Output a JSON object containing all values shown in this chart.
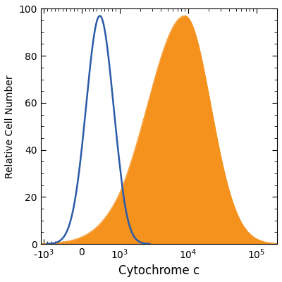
{
  "xlabel": "Cytochrome c",
  "ylabel": "Relative Cell Number",
  "linthresh": 1000,
  "xmin": -1100,
  "xmax": 200000,
  "ymin": 0,
  "ymax": 100,
  "yticks": [
    0,
    20,
    40,
    60,
    80,
    100
  ],
  "xtick_positions": [
    -1000,
    0,
    1000,
    10000,
    100000
  ],
  "xtick_labels": [
    "-10$^3$",
    "0",
    "10$^3$",
    "10$^4$",
    "10$^5$"
  ],
  "blue_color": "#2A5BA8",
  "orange_color": "#F5921E",
  "bg_color": "#ffffff"
}
